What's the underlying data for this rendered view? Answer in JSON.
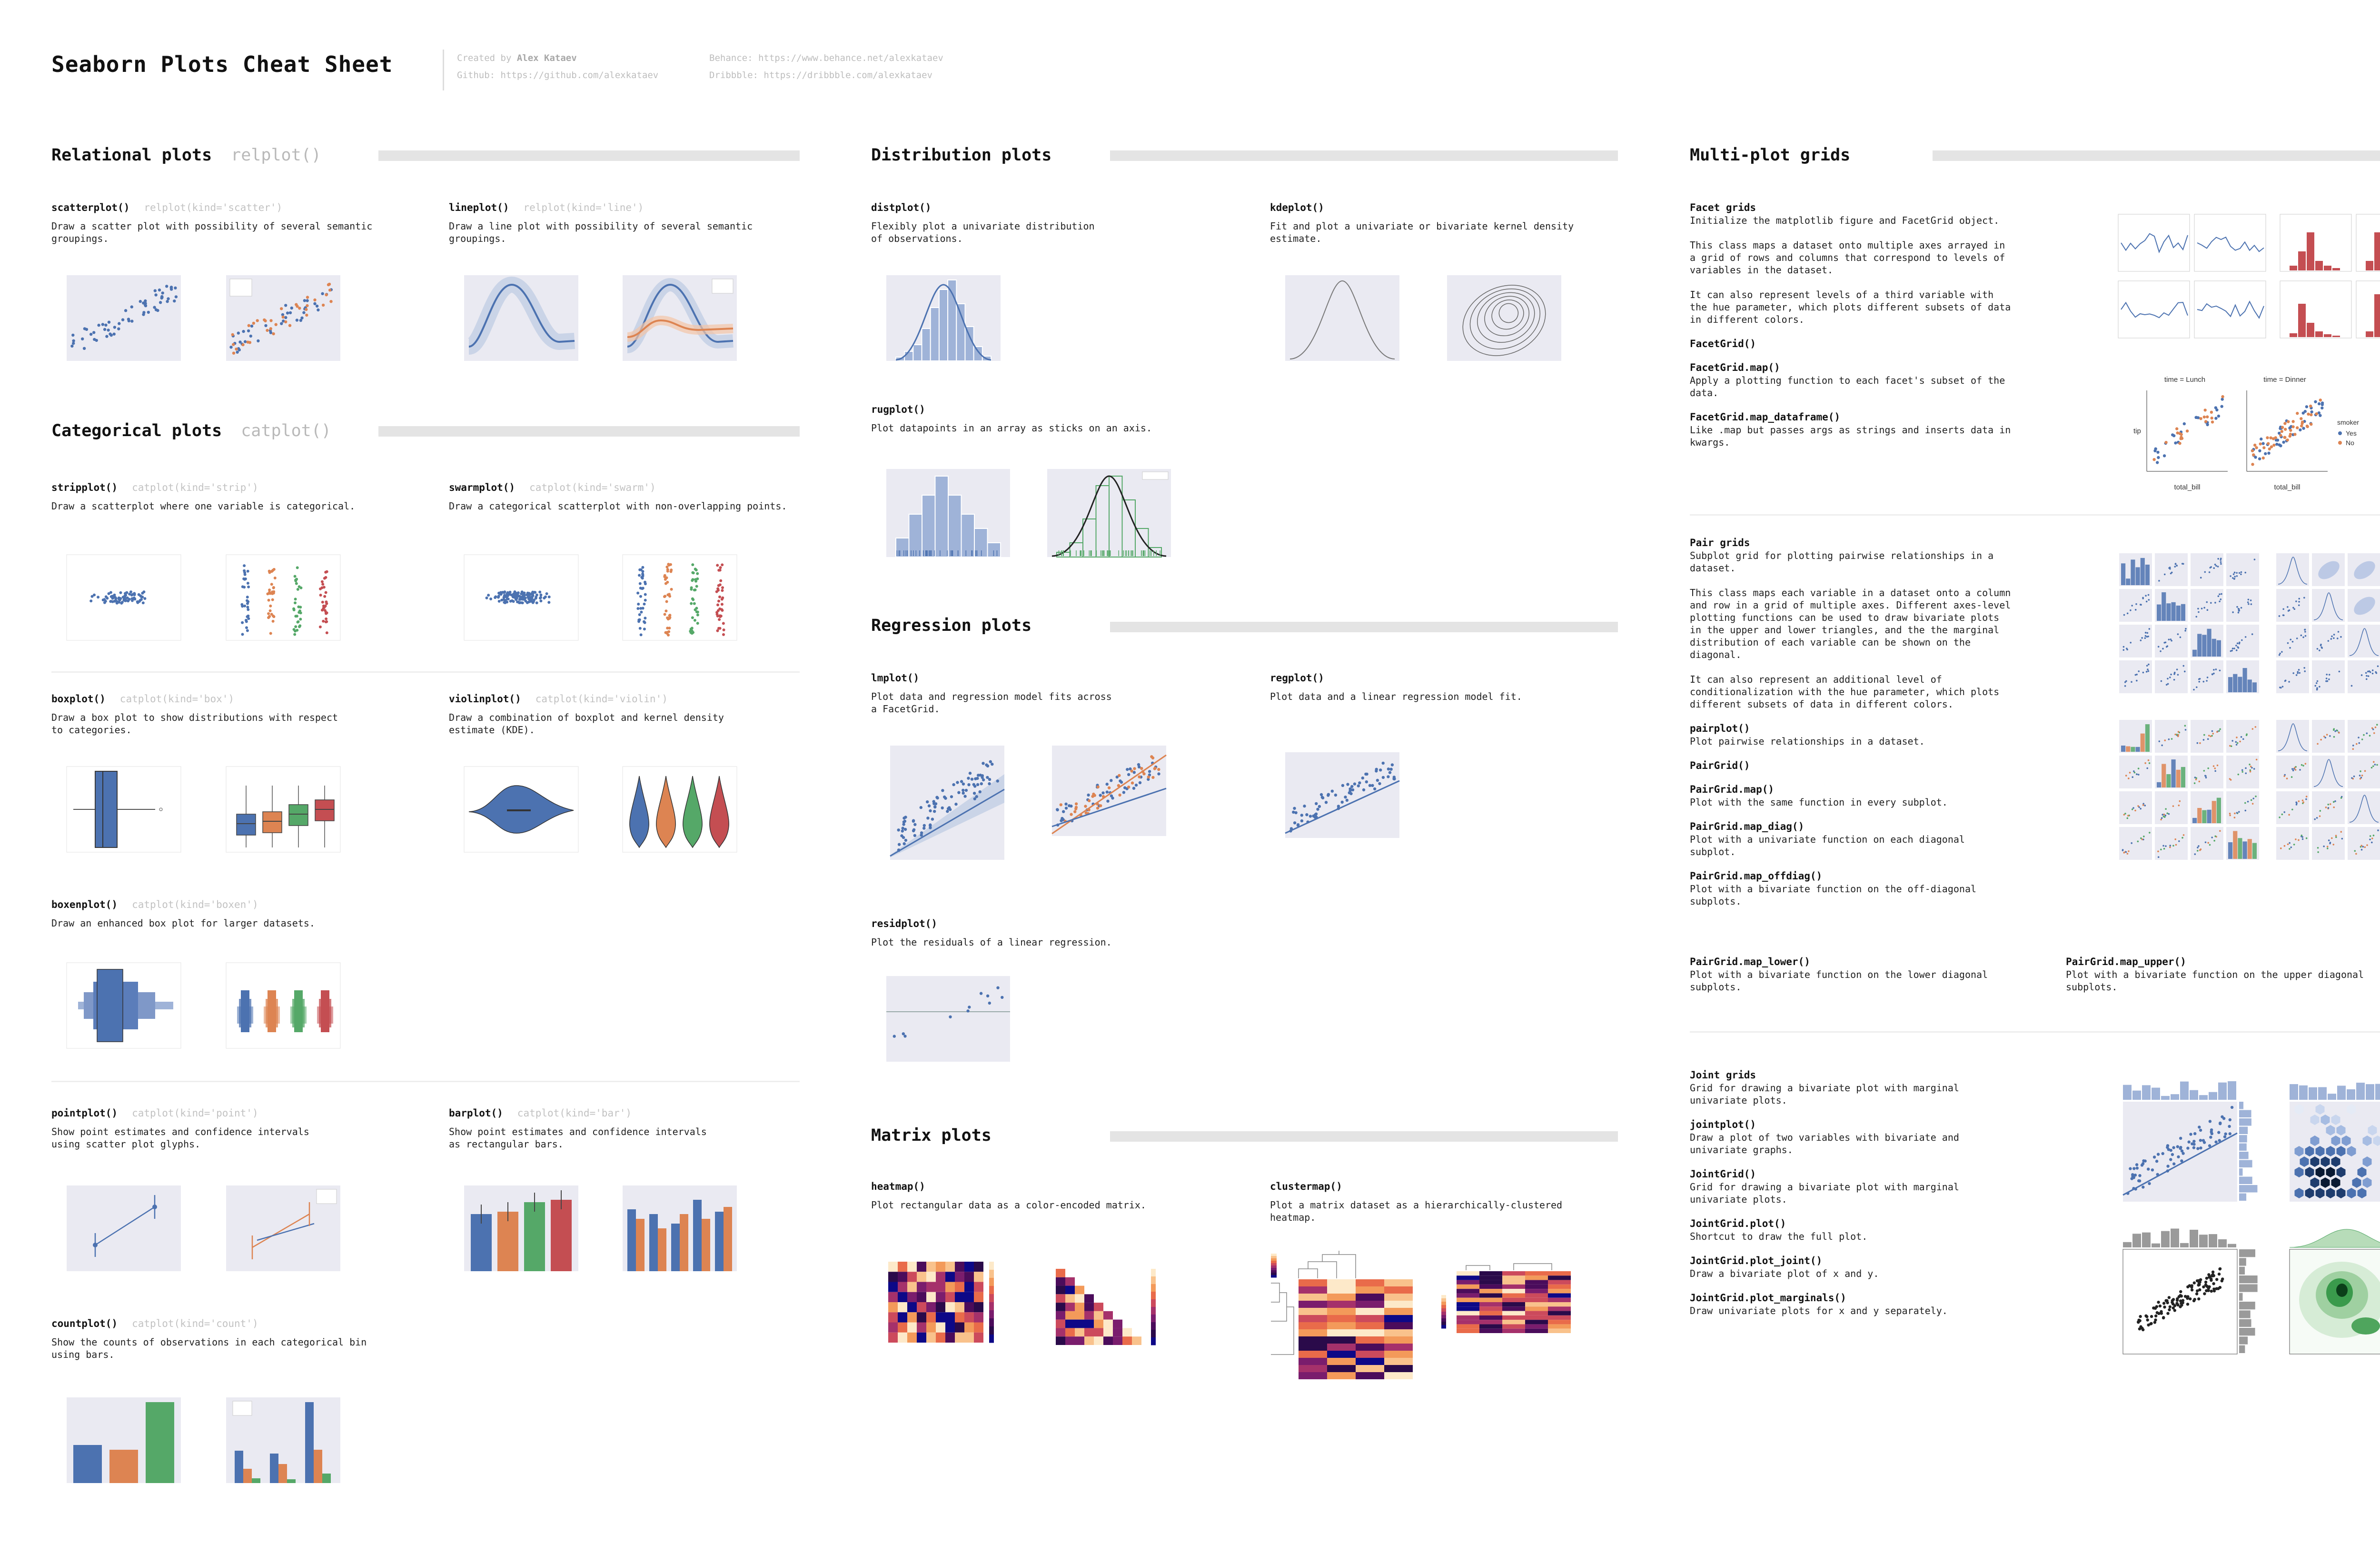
{
  "title": "Seaborn Plots Cheat Sheet",
  "credits": {
    "created_label": "Created by",
    "author": "Alex Kataev",
    "github": "Github: https://github.com/alexkataev",
    "behance": "Behance: https://www.behance.net/alexkataev",
    "dribbble": "Dribbble: https://dribbble.com/alexkataev"
  },
  "colors": {
    "blue": "#4c72b0",
    "orange": "#dd8452",
    "green": "#55a868",
    "red": "#c44e52",
    "panel": "#eaeaf2",
    "heat_dark": "#1a0a2e",
    "heat_light": "#f9c28c"
  },
  "relational": {
    "title": "Relational plots",
    "alt": "relplot()",
    "scatter": {
      "name": "scatterplot()",
      "kind": "relplot(kind='scatter')",
      "desc": "Draw a scatter plot with possibility of several semantic groupings."
    },
    "line": {
      "name": "lineplot()",
      "kind": "relplot(kind='line')",
      "desc": "Draw a line plot with possibility of several semantic groupings."
    }
  },
  "categorical": {
    "title": "Categorical plots",
    "alt": "catplot()",
    "strip": {
      "name": "stripplot()",
      "kind": "catplot(kind='strip')",
      "desc": "Draw a scatterplot where one variable is categorical."
    },
    "swarm": {
      "name": "swarmplot()",
      "kind": "catplot(kind='swarm')",
      "desc": "Draw a categorical scatterplot with non-overlapping points."
    },
    "box": {
      "name": "boxplot()",
      "kind": "catplot(kind='box')",
      "desc": "Draw a box plot to show distributions with respect\nto categories."
    },
    "violin": {
      "name": "violinplot()",
      "kind": "catplot(kind='violin')",
      "desc": "Draw a combination of boxplot and kernel density\nestimate (KDE)."
    },
    "boxen": {
      "name": "boxenplot()",
      "kind": "catplot(kind='boxen')",
      "desc": "Draw an enhanced box plot for larger datasets."
    },
    "point": {
      "name": "pointplot()",
      "kind": "catplot(kind='point')",
      "desc": "Show point estimates and confidence intervals\nusing scatter plot glyphs."
    },
    "bar": {
      "name": "barplot()",
      "kind": "catplot(kind='bar')",
      "desc": "Show point estimates and confidence intervals\nas rectangular bars."
    },
    "count": {
      "name": "countplot()",
      "kind": "catplot(kind='count')",
      "desc": "Show the counts of observations in each categorical bin\nusing bars."
    }
  },
  "distribution": {
    "title": "Distribution plots",
    "dist": {
      "name": "distplot()",
      "desc": "Flexibly plot a univariate distribution\nof observations."
    },
    "kde": {
      "name": "kdeplot()",
      "desc": "Fit and plot a univariate or bivariate kernel density\nestimate."
    },
    "rug": {
      "name": "rugplot()",
      "desc": "Plot datapoints in an array as sticks on an axis."
    }
  },
  "regression": {
    "title": "Regression plots",
    "lm": {
      "name": "lmplot()",
      "desc": "Plot data and regression model fits across\na FacetGrid."
    },
    "reg": {
      "name": "regplot()",
      "desc": "Plot data and a linear regression model fit."
    },
    "resid": {
      "name": "residplot()",
      "desc": "Plot the residuals of a linear regression."
    }
  },
  "matrix": {
    "title": "Matrix plots",
    "heatmap": {
      "name": "heatmap()",
      "desc": "Plot rectangular data as a color-encoded matrix."
    },
    "cluster": {
      "name": "clustermap()",
      "desc": "Plot a matrix dataset as a hierarchically-clustered\nheatmap."
    }
  },
  "multi": {
    "title": "Multi-plot grids",
    "facet": [
      {
        "name": "Facet grids",
        "desc": "Initialize the matplotlib figure and FacetGrid object.\n\nThis class maps a dataset onto multiple axes arrayed in\na grid of rows and columns that correspond to levels of\nvariables in the dataset.\n\nIt can also represent levels of a third variable with\nthe hue parameter, which plots different subsets of data\nin different colors."
      },
      {
        "name": "FacetGrid()",
        "desc": ""
      },
      {
        "name": "FacetGrid.map()",
        "desc": "Apply a plotting function to each facet's subset of the\ndata."
      },
      {
        "name": "FacetGrid.map_dataframe()",
        "desc": "Like .map but passes args as strings and inserts data in\nkwargs."
      }
    ],
    "facet_fig": {
      "col_a": "time = Lunch",
      "col_b": "time = Dinner",
      "xlabel": "total_bill",
      "ylabel": "tip",
      "legend_title": "smoker",
      "legend_yes": "Yes",
      "legend_no": "No"
    },
    "pair": [
      {
        "name": "Pair grids",
        "desc": "Subplot grid for plotting pairwise relationships in a\ndataset.\n\nThis class maps each variable in a dataset onto a column\nand row in a grid of multiple axes. Different axes-level\nplotting functions can be used to draw bivariate plots\nin the upper and lower triangles, and the the marginal\ndistribution of each variable can be shown on the\ndiagonal.\n\nIt can also represent an additional level of\nconditionalization with the hue parameter, which plots\ndifferent subsets of data in different colors."
      },
      {
        "name": "pairplot()",
        "desc": "Plot pairwise relationships in a dataset."
      },
      {
        "name": "PairGrid()",
        "desc": ""
      },
      {
        "name": "PairGrid.map()",
        "desc": "Plot with the same function in every subplot."
      },
      {
        "name": "PairGrid.map_diag()",
        "desc": "Plot with a univariate function on each diagonal\nsubplot."
      },
      {
        "name": "PairGrid.map_offdiag()",
        "desc": "Plot with a bivariate function on the off-diagonal\nsubplots."
      }
    ],
    "pair_lower": {
      "name": "PairGrid.map_lower()",
      "desc": "Plot with a bivariate function on the lower diagonal\nsubplots."
    },
    "pair_upper": {
      "name": "PairGrid.map_upper()",
      "desc": "Plot with a bivariate function on the upper diagonal\nsubplots."
    },
    "joint": [
      {
        "name": "Joint grids",
        "desc": "Grid for drawing a bivariate plot with marginal\nunivariate plots."
      },
      {
        "name": "jointplot()",
        "desc": "Draw a plot of two variables with bivariate and\nunivariate graphs."
      },
      {
        "name": "JointGrid()",
        "desc": "Grid for drawing a bivariate plot with marginal\nunivariate plots."
      },
      {
        "name": "JointGrid.plot()",
        "desc": "Shortcut to draw the full plot."
      },
      {
        "name": "JointGrid.plot_joint()",
        "desc": "Draw a bivariate plot of x and y."
      },
      {
        "name": "JointGrid.plot_marginals()",
        "desc": "Draw univariate plots for x and y separately."
      }
    ]
  }
}
